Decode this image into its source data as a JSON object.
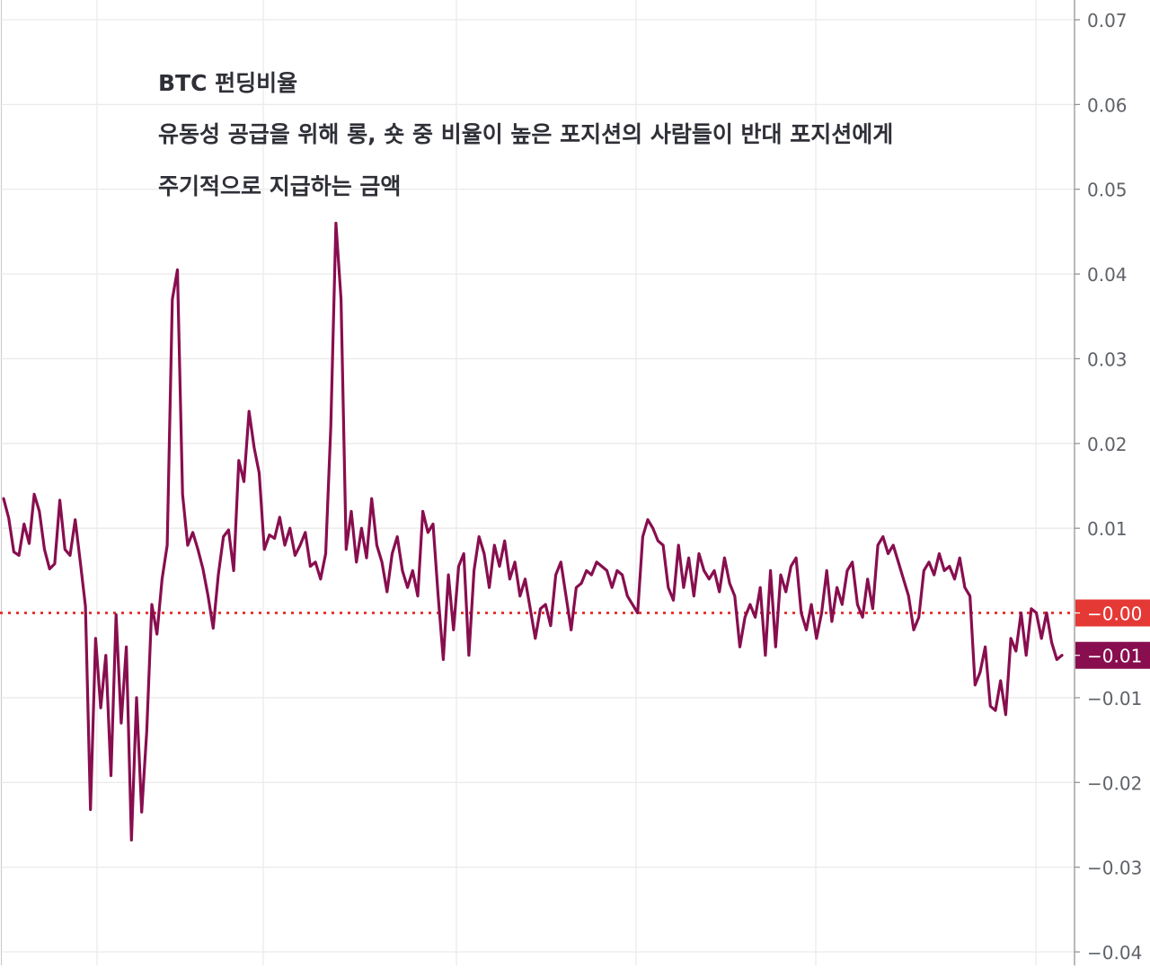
{
  "chart_data": {
    "type": "line",
    "title": "",
    "xlabel": "",
    "ylabel": "",
    "ylim": [
      -0.04,
      0.07
    ],
    "y_ticks": [
      0.07,
      0.06,
      0.05,
      0.04,
      0.03,
      0.02,
      0.01,
      -0.01,
      -0.02,
      -0.03,
      -0.04
    ],
    "y_tick_labels": [
      "0.07",
      "0.06",
      "0.05",
      "0.04",
      "0.03",
      "0.02",
      "0.01",
      "−0.01",
      "−0.02",
      "−0.03",
      "−0.04"
    ],
    "grid": true,
    "annotations": [
      "BTC 펀딩비율",
      "유동성 공급을 위해 롱, 숏 중 비율이 높은 포지션의 사람들이 반대 포지션에게",
      "주기적으로 지급하는 금액"
    ],
    "reference_line": {
      "value": 0.0,
      "label": "−0.00",
      "color": "#e53935"
    },
    "last_value_label": "−0.01",
    "series_color": "#880e4f",
    "series": [
      {
        "values": [
          0.0135,
          0.0112,
          0.0072,
          0.0068,
          0.0105,
          0.0082,
          0.014,
          0.012,
          0.0075,
          0.0052,
          0.0058,
          0.0133,
          0.0075,
          0.0068,
          0.011,
          0.006,
          0.0008,
          -0.0232,
          -0.003,
          -0.0112,
          -0.005,
          -0.0192,
          -0.0002,
          -0.013,
          -0.004,
          -0.0268,
          -0.01,
          -0.0235,
          -0.014,
          0.001,
          -0.0025,
          0.004,
          0.008,
          0.037,
          0.0405,
          0.014,
          0.008,
          0.0095,
          0.0075,
          0.0052,
          0.002,
          -0.0018,
          0.0045,
          0.009,
          0.0098,
          0.005,
          0.018,
          0.0155,
          0.0238,
          0.0195,
          0.0165,
          0.0075,
          0.0092,
          0.0088,
          0.0113,
          0.008,
          0.01,
          0.0068,
          0.008,
          0.0095,
          0.0055,
          0.006,
          0.004,
          0.007,
          0.022,
          0.046,
          0.037,
          0.0075,
          0.012,
          0.006,
          0.01,
          0.0065,
          0.0135,
          0.008,
          0.006,
          0.0025,
          0.007,
          0.009,
          0.005,
          0.003,
          0.005,
          0.002,
          0.012,
          0.0095,
          0.0105,
          0.002,
          -0.0055,
          0.0045,
          -0.002,
          0.0055,
          0.007,
          -0.005,
          0.005,
          0.009,
          0.007,
          0.003,
          0.008,
          0.0055,
          0.0085,
          0.004,
          0.006,
          0.002,
          0.004,
          0.0005,
          -0.003,
          0.0005,
          0.001,
          -0.0015,
          0.0045,
          0.006,
          0.002,
          -0.002,
          0.003,
          0.0035,
          0.005,
          0.0045,
          0.006,
          0.0055,
          0.005,
          0.003,
          0.005,
          0.0045,
          0.002,
          0.001,
          0.0,
          0.009,
          0.011,
          0.01,
          0.0085,
          0.008,
          0.003,
          0.0015,
          0.008,
          0.003,
          0.0065,
          0.002,
          0.007,
          0.005,
          0.004,
          0.005,
          0.0025,
          0.0065,
          0.0035,
          0.002,
          -0.004,
          -0.0005,
          0.001,
          -0.0005,
          0.003,
          -0.005,
          0.005,
          -0.004,
          0.0045,
          0.0025,
          0.0055,
          0.0065,
          0.0,
          -0.002,
          0.001,
          -0.003,
          0.0,
          0.005,
          -0.001,
          0.003,
          0.001,
          0.005,
          0.006,
          0.001,
          -0.0005,
          0.004,
          0.0005,
          0.008,
          0.009,
          0.007,
          0.008,
          0.006,
          0.004,
          0.002,
          -0.002,
          -0.0005,
          0.005,
          0.006,
          0.0045,
          0.007,
          0.005,
          0.0055,
          0.004,
          0.0065,
          0.003,
          0.002,
          -0.0085,
          -0.007,
          -0.004,
          -0.011,
          -0.0115,
          -0.008,
          -0.012,
          -0.003,
          -0.0045,
          0.0,
          -0.005,
          0.0005,
          0.0,
          -0.003,
          0.0,
          -0.0035,
          -0.0055,
          -0.005
        ]
      }
    ]
  }
}
